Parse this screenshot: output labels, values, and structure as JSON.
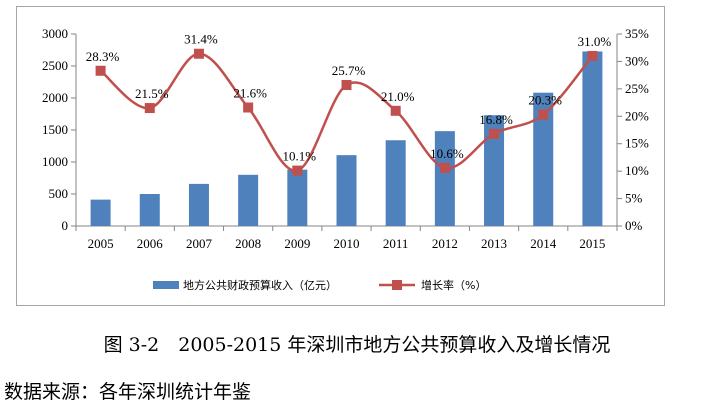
{
  "chart_data": {
    "type": "bar+line",
    "categories": [
      "2005",
      "2006",
      "2007",
      "2008",
      "2009",
      "2010",
      "2011",
      "2012",
      "2013",
      "2014",
      "2015"
    ],
    "series": [
      {
        "name": "地方公共财政预算收入（亿元）",
        "type": "bar",
        "axis": "left",
        "color": "#4f81bd",
        "values": [
          412,
          500,
          658,
          800,
          880,
          1107,
          1340,
          1482,
          1731,
          2083,
          2727
        ]
      },
      {
        "name": "增长率（%）",
        "type": "line",
        "axis": "right",
        "color": "#c0504d",
        "values": [
          28.3,
          21.5,
          31.4,
          21.6,
          10.1,
          25.7,
          21.0,
          10.6,
          16.8,
          20.3,
          31.0
        ],
        "labels": [
          "28.3%",
          "21.5%",
          "31.4%",
          "21.6%",
          "10.1%",
          "25.7%",
          "21.0%",
          "10.6%",
          "16.8%",
          "20.3%",
          "31.0%"
        ]
      }
    ],
    "y_left": {
      "min": 0,
      "max": 3000,
      "ticks": [
        "0",
        "500",
        "1000",
        "1500",
        "2000",
        "2500",
        "3000"
      ]
    },
    "y_right": {
      "min": 0,
      "max": 35,
      "ticks": [
        "0%",
        "5%",
        "10%",
        "15%",
        "20%",
        "25%",
        "30%",
        "35%"
      ]
    },
    "grid": false,
    "legend_position": "bottom"
  },
  "caption": "图 3-2　2005-2015 年深圳市地方公共预算收入及增长情况",
  "source": "数据来源：各年深圳统计年鉴"
}
